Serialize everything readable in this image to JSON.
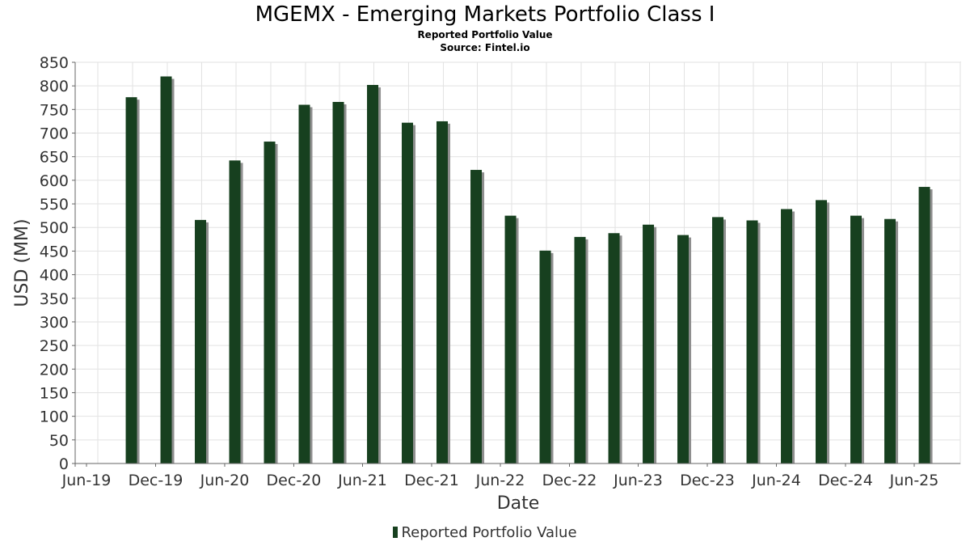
{
  "chart_data": {
    "type": "bar",
    "title": "MGEMX - Emerging Markets Portfolio Class I",
    "subtitle_lines": [
      "Reported Portfolio Value",
      "Source: Fintel.io"
    ],
    "xlabel": "Date",
    "ylabel": "USD (MM)",
    "ylim": [
      0,
      850
    ],
    "y_ticks": [
      0,
      50,
      100,
      150,
      200,
      250,
      300,
      350,
      400,
      450,
      500,
      550,
      600,
      650,
      700,
      750,
      800,
      850
    ],
    "x_ticks": [
      "Jun-19",
      "Dec-19",
      "Jun-20",
      "Dec-20",
      "Jun-21",
      "Dec-21",
      "Jun-22",
      "Dec-22",
      "Jun-23",
      "Dec-23",
      "Jun-24",
      "Dec-24",
      "Jun-25"
    ],
    "grid": true,
    "legend": "bottom-center",
    "bar_color": "#17401f",
    "shadow_color": "#8f8f8f",
    "series": [
      {
        "name": "Reported Portfolio Value",
        "points": [
          {
            "date": "2019-09-30",
            "value": 776
          },
          {
            "date": "2019-12-31",
            "value": 820
          },
          {
            "date": "2020-03-31",
            "value": 516
          },
          {
            "date": "2020-06-30",
            "value": 642
          },
          {
            "date": "2020-09-30",
            "value": 682
          },
          {
            "date": "2020-12-31",
            "value": 760
          },
          {
            "date": "2021-03-31",
            "value": 766
          },
          {
            "date": "2021-06-30",
            "value": 802
          },
          {
            "date": "2021-09-30",
            "value": 722
          },
          {
            "date": "2021-12-31",
            "value": 725
          },
          {
            "date": "2022-03-31",
            "value": 622
          },
          {
            "date": "2022-06-30",
            "value": 525
          },
          {
            "date": "2022-09-30",
            "value": 451
          },
          {
            "date": "2022-12-31",
            "value": 480
          },
          {
            "date": "2023-03-31",
            "value": 488
          },
          {
            "date": "2023-06-30",
            "value": 506
          },
          {
            "date": "2023-09-30",
            "value": 484
          },
          {
            "date": "2023-12-31",
            "value": 522
          },
          {
            "date": "2024-03-31",
            "value": 515
          },
          {
            "date": "2024-06-30",
            "value": 539
          },
          {
            "date": "2024-09-30",
            "value": 558
          },
          {
            "date": "2024-12-31",
            "value": 525
          },
          {
            "date": "2025-03-31",
            "value": 518
          },
          {
            "date": "2025-06-30",
            "value": 586
          }
        ]
      }
    ]
  }
}
